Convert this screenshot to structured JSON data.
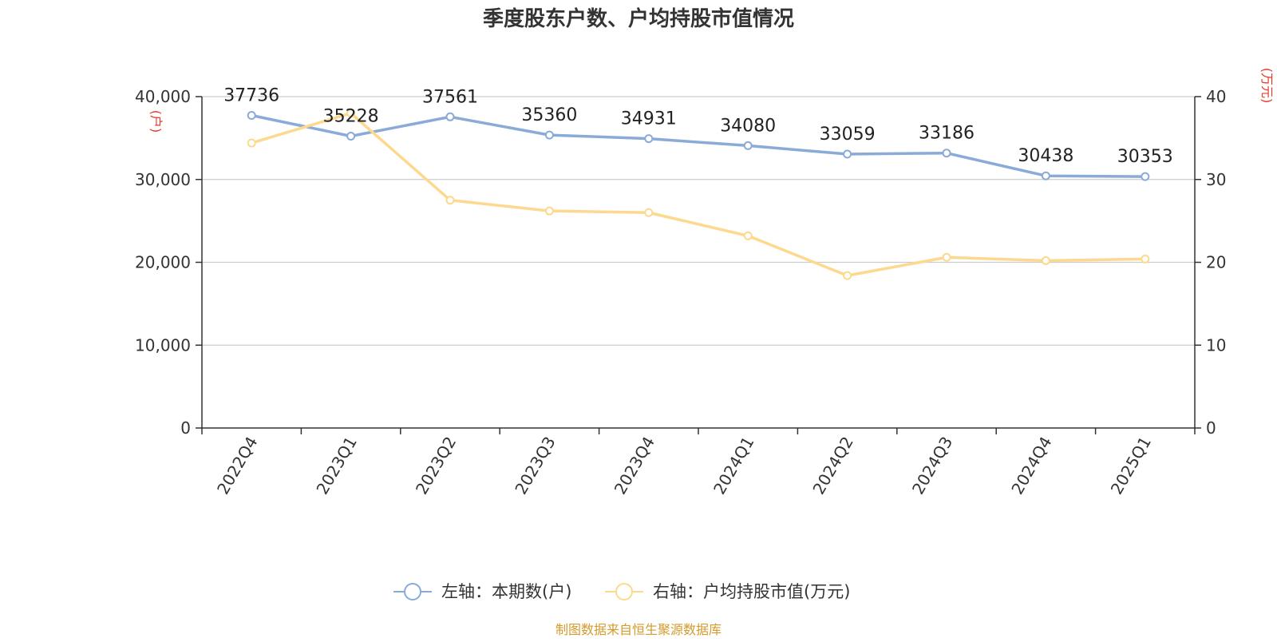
{
  "chart_data": {
    "type": "line",
    "title": "季度股东户数、户均持股市值情况",
    "categories": [
      "2022Q4",
      "2023Q1",
      "2023Q2",
      "2023Q3",
      "2023Q4",
      "2024Q1",
      "2024Q2",
      "2024Q3",
      "2024Q4",
      "2025Q1"
    ],
    "series": [
      {
        "name": "左轴：本期数(户)",
        "axis": "left",
        "color": "#8aaad8",
        "values": [
          37736,
          35228,
          37561,
          35360,
          34931,
          34080,
          33059,
          33186,
          30438,
          30353
        ],
        "labels": [
          "37736",
          "35228",
          "37561",
          "35360",
          "34931",
          "34080",
          "33059",
          "33186",
          "30438",
          "30353"
        ]
      },
      {
        "name": "右轴：户均持股市值(万元)",
        "axis": "right",
        "color": "#fcd98e",
        "values": [
          34.4,
          38.0,
          27.5,
          26.2,
          26.0,
          23.2,
          18.4,
          20.6,
          20.2,
          20.4
        ]
      }
    ],
    "left_axis": {
      "unit": "(户)",
      "ylim": [
        0,
        40000
      ],
      "ticks": [
        0,
        10000,
        20000,
        30000,
        40000
      ],
      "tick_labels": [
        "0",
        "10,000",
        "20,000",
        "30,000",
        "40,000"
      ]
    },
    "right_axis": {
      "unit": "(万元)",
      "ylim": [
        0,
        40
      ],
      "ticks": [
        0,
        10,
        20,
        30,
        40
      ],
      "tick_labels": [
        "0",
        "10",
        "20",
        "30",
        "40"
      ]
    },
    "grid": true,
    "legend_position": "bottom-center"
  },
  "source": "制图数据来自恒生聚源数据库"
}
